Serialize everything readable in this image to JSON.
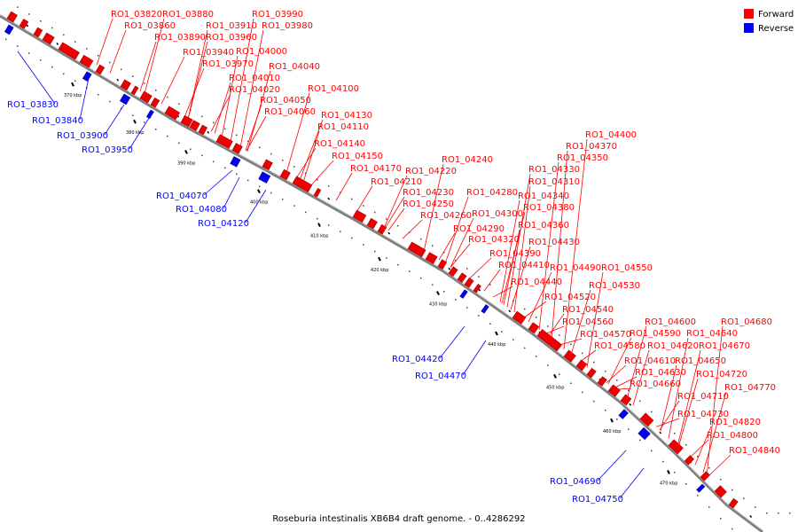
{
  "legend": {
    "forward": "Forward",
    "reverse": "Reverse",
    "forward_color": "#ff0000",
    "reverse_color": "#0000ff"
  },
  "caption": "Roseburia intestinalis XB6B4 draft genome. - 0..4286292",
  "ticks": [
    "370 kbp",
    "380 kbp",
    "390 kbp",
    "400 kbp",
    "410 kbp",
    "420 kbp",
    "430 kbp",
    "440 kbp",
    "450 kbp",
    "460 kbp",
    "470 kbp"
  ],
  "forward_genes": [
    "RO1_03820",
    "RO1_03880",
    "RO1_03990",
    "RO1_03860",
    "RO1_03910",
    "RO1_03980",
    "RO1_03890",
    "RO1_03960",
    "RO1_03940",
    "RO1_04000",
    "RO1_03970",
    "RO1_04040",
    "RO1_04010",
    "RO1_04020",
    "RO1_04100",
    "RO1_04050",
    "RO1_04060",
    "RO1_04130",
    "RO1_04110",
    "RO1_04140",
    "RO1_04150",
    "RO1_04170",
    "RO1_04240",
    "RO1_04220",
    "RO1_04210",
    "RO1_04230",
    "RO1_04280",
    "RO1_04250",
    "RO1_04260",
    "RO1_04300",
    "RO1_04290",
    "RO1_04320",
    "RO1_04390",
    "RO1_04410",
    "RO1_04440",
    "RO1_04400",
    "RO1_04370",
    "RO1_04350",
    "RO1_04330",
    "RO1_04310",
    "RO1_04340",
    "RO1_04380",
    "RO1_04360",
    "RO1_04430",
    "RO1_04490",
    "RO1_04550",
    "RO1_04530",
    "RO1_04520",
    "RO1_04540",
    "RO1_04560",
    "RO1_04570",
    "RO1_04580",
    "RO1_04600",
    "RO1_04590",
    "RO1_04620",
    "RO1_04610",
    "RO1_04630",
    "RO1_04660",
    "RO1_04710",
    "RO1_04730",
    "RO1_04680",
    "RO1_04640",
    "RO1_04670",
    "RO1_04650",
    "RO1_04720",
    "RO1_04770",
    "RO1_04820",
    "RO1_04800",
    "RO1_04840"
  ],
  "reverse_genes": [
    "RO1_03830",
    "RO1_03840",
    "RO1_03900",
    "RO1_03950",
    "RO1_04070",
    "RO1_04080",
    "RO1_04120",
    "RO1_04420",
    "RO1_04470",
    "RO1_04690",
    "RO1_04750"
  ]
}
